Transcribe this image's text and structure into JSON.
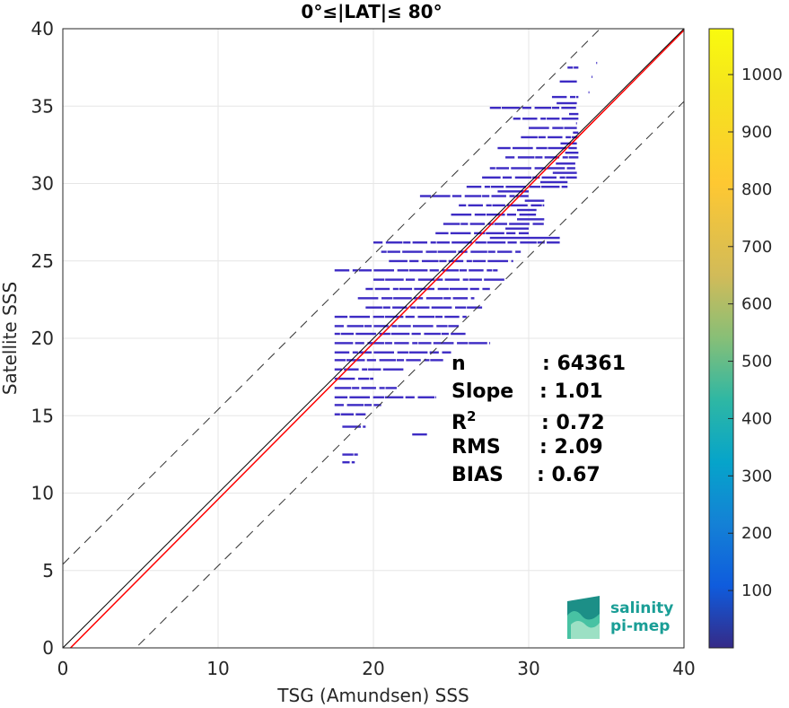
{
  "chart_data": {
    "type": "scatter",
    "title": "0°≤|LAT|≤ 80°",
    "xlabel": "TSG (Amundsen) SSS",
    "ylabel": "Satellite SSS",
    "xlim": [
      0,
      40
    ],
    "ylim": [
      0,
      40
    ],
    "xticks": [
      "0",
      "10",
      "20",
      "30",
      "40"
    ],
    "yticks": [
      "0",
      "5",
      "10",
      "15",
      "20",
      "25",
      "30",
      "35",
      "40"
    ],
    "grid": true,
    "identity_line": {
      "slope": 1,
      "intercept": 0,
      "color": "#000000"
    },
    "regression_line": {
      "slope": 1.01,
      "intercept": -0.5,
      "color": "#ff0000"
    },
    "envelope_lines": [
      {
        "slope": 1,
        "intercept": 5.4,
        "style": "dashed"
      },
      {
        "slope": 1,
        "intercept": -4.7,
        "style": "dashed"
      }
    ],
    "density_segments": [
      {
        "x0": 32.5,
        "x1": 33.2,
        "y": 37.5
      },
      {
        "x0": 32.0,
        "x1": 33.1,
        "y": 36.6
      },
      {
        "x0": 31.5,
        "x1": 33.2,
        "y": 35.6
      },
      {
        "x0": 27.5,
        "x1": 33.1,
        "y": 34.9
      },
      {
        "x0": 29.0,
        "x1": 33.2,
        "y": 34.2
      },
      {
        "x0": 30.0,
        "x1": 33.1,
        "y": 33.6
      },
      {
        "x0": 29.5,
        "x1": 33.2,
        "y": 33.0
      },
      {
        "x0": 28.0,
        "x1": 33.1,
        "y": 32.3
      },
      {
        "x0": 28.5,
        "x1": 33.2,
        "y": 31.7
      },
      {
        "x0": 27.5,
        "x1": 33.0,
        "y": 31.0
      },
      {
        "x0": 27.0,
        "x1": 33.1,
        "y": 30.4
      },
      {
        "x0": 26.0,
        "x1": 32.5,
        "y": 29.8
      },
      {
        "x0": 23.0,
        "x1": 30.0,
        "y": 29.2
      },
      {
        "x0": 25.5,
        "x1": 31.0,
        "y": 28.6
      },
      {
        "x0": 25.0,
        "x1": 30.5,
        "y": 28.0
      },
      {
        "x0": 24.5,
        "x1": 31.0,
        "y": 27.4
      },
      {
        "x0": 24.0,
        "x1": 30.0,
        "y": 26.8
      },
      {
        "x0": 20.0,
        "x1": 32.0,
        "y": 26.2
      },
      {
        "x0": 20.5,
        "x1": 29.5,
        "y": 25.6
      },
      {
        "x0": 21.0,
        "x1": 29.0,
        "y": 25.0
      },
      {
        "x0": 17.5,
        "x1": 28.0,
        "y": 24.4
      },
      {
        "x0": 20.0,
        "x1": 28.5,
        "y": 23.8
      },
      {
        "x0": 19.5,
        "x1": 27.5,
        "y": 23.2
      },
      {
        "x0": 19.0,
        "x1": 26.5,
        "y": 22.6
      },
      {
        "x0": 19.5,
        "x1": 27.0,
        "y": 22.0
      },
      {
        "x0": 17.5,
        "x1": 26.0,
        "y": 21.4
      },
      {
        "x0": 17.5,
        "x1": 25.5,
        "y": 20.8
      },
      {
        "x0": 17.5,
        "x1": 26.0,
        "y": 20.3
      },
      {
        "x0": 17.5,
        "x1": 27.5,
        "y": 19.7
      },
      {
        "x0": 17.5,
        "x1": 25.0,
        "y": 19.1
      },
      {
        "x0": 17.5,
        "x1": 24.5,
        "y": 18.6
      },
      {
        "x0": 17.5,
        "x1": 22.0,
        "y": 18.0
      },
      {
        "x0": 17.5,
        "x1": 20.0,
        "y": 17.4
      },
      {
        "x0": 17.5,
        "x1": 21.5,
        "y": 16.8
      },
      {
        "x0": 17.5,
        "x1": 24.0,
        "y": 16.2
      },
      {
        "x0": 17.5,
        "x1": 20.5,
        "y": 15.7
      },
      {
        "x0": 17.5,
        "x1": 19.5,
        "y": 15.1
      },
      {
        "x0": 18.0,
        "x1": 19.5,
        "y": 14.3
      },
      {
        "x0": 22.5,
        "x1": 23.5,
        "y": 13.8
      },
      {
        "x0": 18.0,
        "x1": 19.0,
        "y": 12.5
      },
      {
        "x0": 18.0,
        "x1": 18.8,
        "y": 12.0
      }
    ],
    "stats": [
      {
        "label": "n",
        "value": ": 64361"
      },
      {
        "label": "Slope",
        "value": ": 1.01"
      },
      {
        "label": "R",
        "sup": "2",
        "value": ": 0.72"
      },
      {
        "label": "RMS",
        "value": ": 2.09"
      },
      {
        "label": "BIAS",
        "value": ": 0.67"
      }
    ],
    "colorbar": {
      "min": 0,
      "max": 1080,
      "ticks": [
        100,
        200,
        300,
        400,
        500,
        600,
        700,
        800,
        900,
        1000
      ],
      "colormap": "parula"
    },
    "point_color": "#3d2bc4"
  },
  "logo": {
    "line1": "salinity",
    "line2": "pi-mep"
  }
}
